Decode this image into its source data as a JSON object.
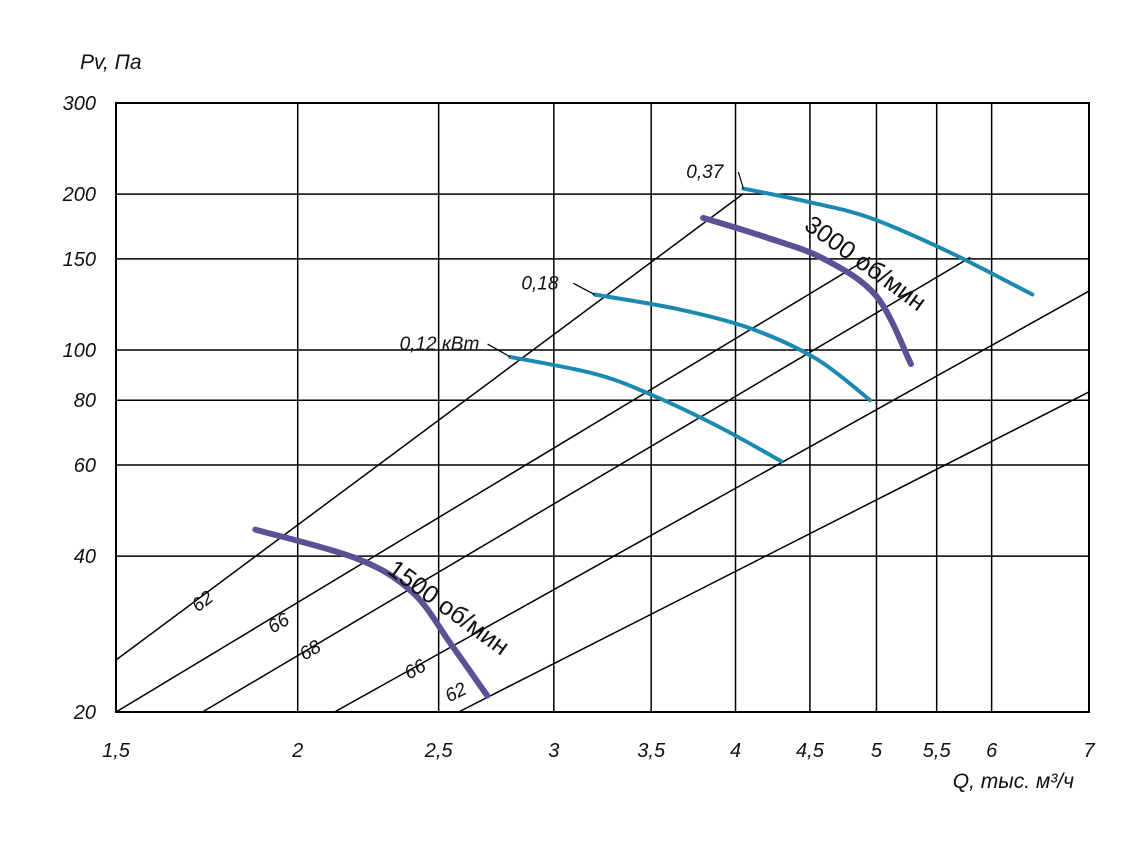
{
  "chart_data": {
    "type": "line",
    "xscale": "log",
    "yscale": "log",
    "xlim": [
      1.5,
      7
    ],
    "ylim": [
      20,
      300
    ],
    "grid": true,
    "x_axis_label": "Q, тыс. м³/ч",
    "y_axis_label": "Pv, Па",
    "x_ticks": [
      {
        "v": 1.5,
        "label": "1,5"
      },
      {
        "v": 2,
        "label": "2"
      },
      {
        "v": 2.5,
        "label": "2,5"
      },
      {
        "v": 3,
        "label": "3"
      },
      {
        "v": 3.5,
        "label": "3,5"
      },
      {
        "v": 4,
        "label": "4"
      },
      {
        "v": 4.5,
        "label": "4,5"
      },
      {
        "v": 5,
        "label": "5"
      },
      {
        "v": 5.5,
        "label": "5,5"
      },
      {
        "v": 6,
        "label": "6"
      },
      {
        "v": 7,
        "label": "7"
      }
    ],
    "y_ticks": [
      {
        "v": 20,
        "label": "20"
      },
      {
        "v": 40,
        "label": "40"
      },
      {
        "v": 60,
        "label": "60"
      },
      {
        "v": 80,
        "label": "80"
      },
      {
        "v": 100,
        "label": "100"
      },
      {
        "v": 150,
        "label": "150"
      },
      {
        "v": 200,
        "label": "200"
      },
      {
        "v": 300,
        "label": "300"
      }
    ],
    "noise_lines": [
      {
        "label": "62",
        "from": [
          1.5,
          25.2
        ],
        "to": [
          4.05,
          200.5
        ],
        "label_at": [
          1.73,
          32
        ]
      },
      {
        "label": "66",
        "from": [
          1.5,
          20
        ],
        "to": [
          4.95,
          151
        ],
        "label_at": [
          1.95,
          29
        ]
      },
      {
        "label": "68",
        "from": [
          1.72,
          20
        ],
        "to": [
          5.8,
          151
        ],
        "label_at": [
          2.05,
          25.7
        ]
      },
      {
        "label": "66",
        "from": [
          2.12,
          20
        ],
        "to": [
          7,
          130
        ],
        "label_at": [
          2.42,
          23.6
        ]
      },
      {
        "label": "62",
        "from": [
          2.58,
          20
        ],
        "to": [
          7,
          83
        ],
        "label_at": [
          2.58,
          21.3
        ]
      }
    ],
    "series": [
      {
        "name": "3000 об/мин",
        "color": "#5a5295",
        "width": 6,
        "points": [
          [
            3.8,
            180
          ],
          [
            4.2,
            165
          ],
          [
            4.6,
            150
          ],
          [
            5.0,
            127
          ],
          [
            5.28,
            94
          ]
        ]
      },
      {
        "name": "1500 об/мин",
        "color": "#5a5295",
        "width": 6,
        "points": [
          [
            1.87,
            45
          ],
          [
            2.2,
            39.5
          ],
          [
            2.4,
            34
          ],
          [
            2.55,
            27
          ],
          [
            2.7,
            21.5
          ]
        ]
      }
    ],
    "power_curves": [
      {
        "label": "0,37",
        "color": "#1a8ab0",
        "width": 4,
        "points": [
          [
            4.05,
            205
          ],
          [
            4.5,
            193
          ],
          [
            4.95,
            180
          ],
          [
            5.6,
            155
          ],
          [
            6.4,
            128
          ]
        ],
        "label_at": [
          3.7,
          215
        ]
      },
      {
        "label": "0,18",
        "color": "#1a8ab0",
        "width": 4,
        "points": [
          [
            3.2,
            128
          ],
          [
            3.65,
            120
          ],
          [
            4.1,
            110
          ],
          [
            4.55,
            96
          ],
          [
            4.95,
            80
          ]
        ],
        "label_at": [
          2.85,
          131
        ]
      },
      {
        "label": "0,12 кВт",
        "color": "#1a8ab0",
        "width": 4,
        "points": [
          [
            2.8,
            97
          ],
          [
            3.2,
            90
          ],
          [
            3.5,
            82
          ],
          [
            3.9,
            71
          ],
          [
            4.3,
            61
          ]
        ],
        "label_at": [
          2.35,
          100
        ]
      }
    ],
    "curve_labels": [
      "3000 об/мин",
      "1500 об/мин"
    ],
    "colors": {
      "fan_curve": "#5a5295",
      "power_curve": "#1a8ab0",
      "grid": "#000000"
    }
  }
}
